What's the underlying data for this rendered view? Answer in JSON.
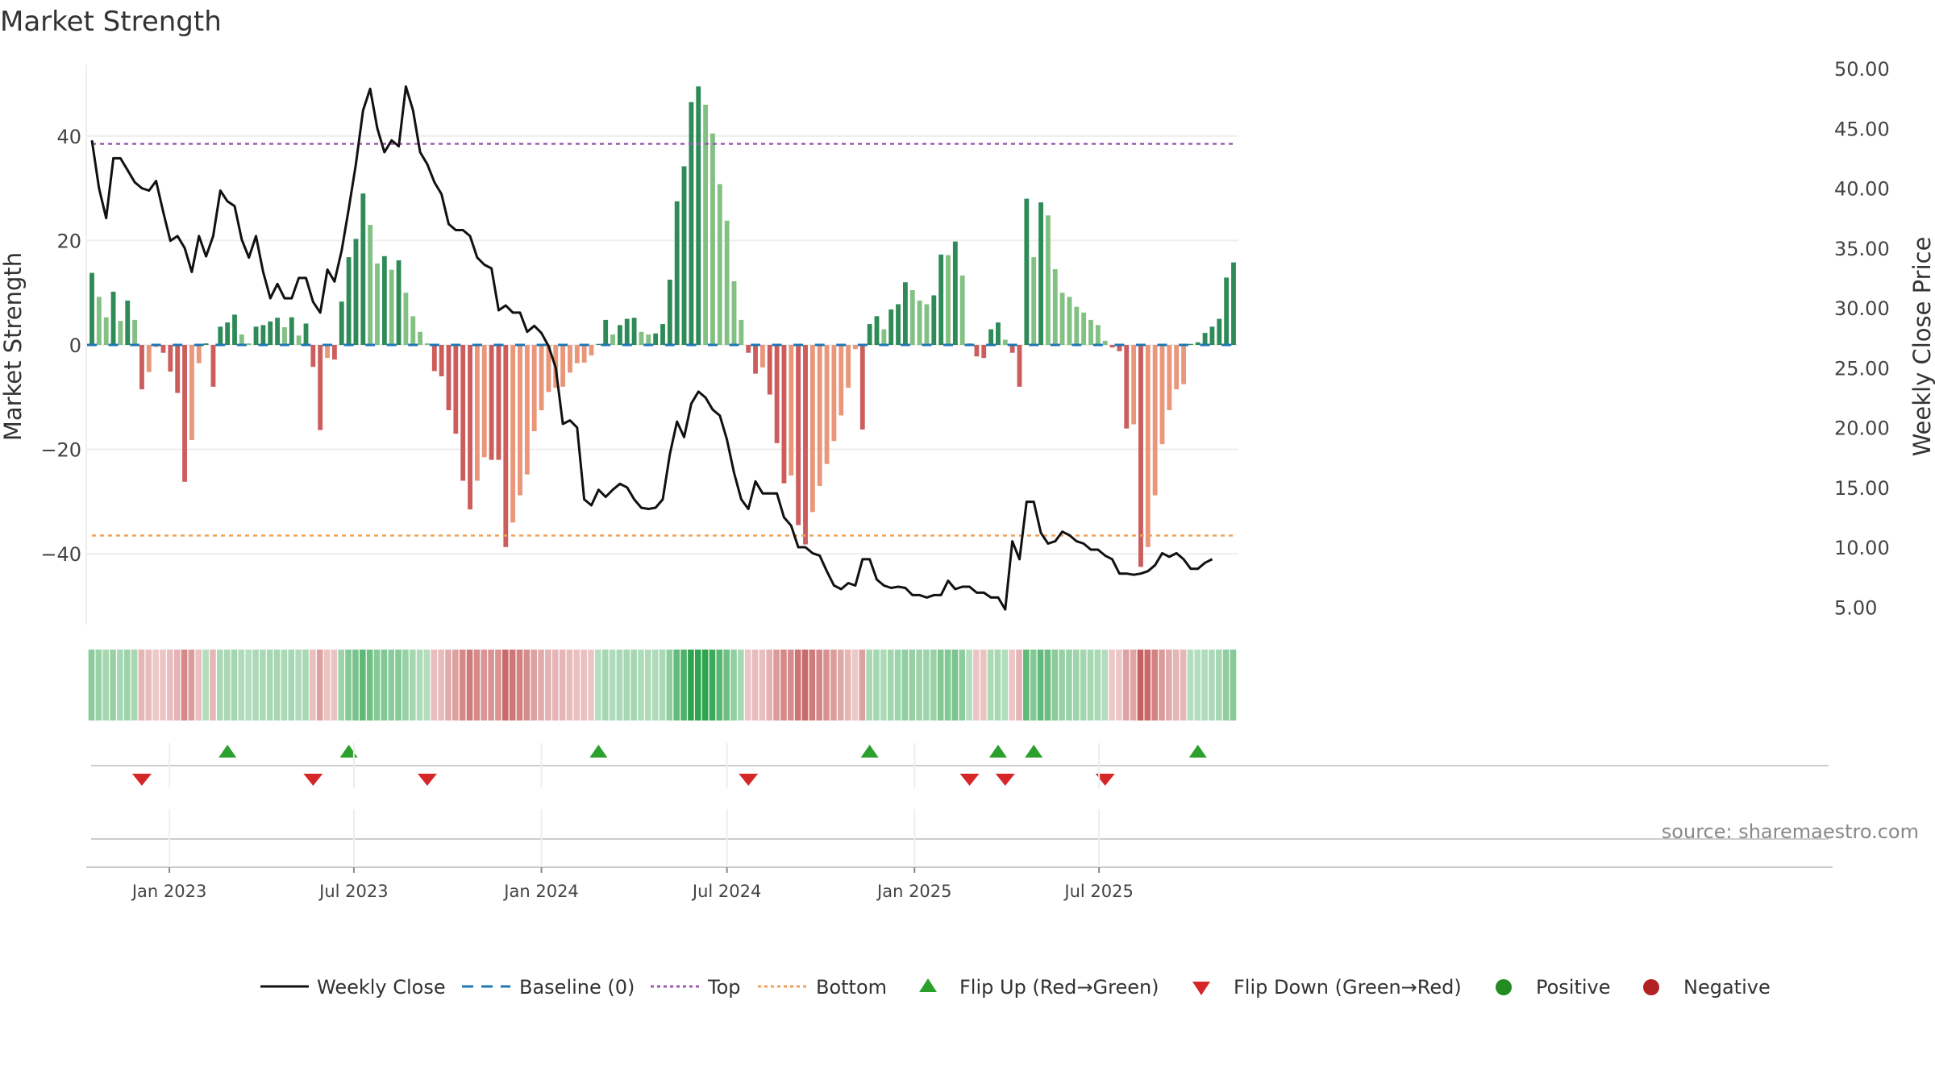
{
  "title": "Market Strength",
  "source_text": "source: sharemaestro.com",
  "y_left_label": "Market Strength",
  "y_right_label": "Weekly Close Price",
  "y_left_ticks": [
    "40",
    "20",
    "0",
    "−20",
    "−40"
  ],
  "y_right_ticks": [
    "50.00",
    "45.00",
    "40.00",
    "35.00",
    "30.00",
    "25.00",
    "20.00",
    "15.00",
    "10.00",
    "5.00"
  ],
  "x_tick_labels": [
    "Jan 2023",
    "Jul 2023",
    "Jan 2024",
    "Jul 2024",
    "Jan 2025",
    "Jul 2025"
  ],
  "legend": {
    "weekly_close": "Weekly Close",
    "baseline": "Baseline (0)",
    "top": "Top",
    "bottom": "Bottom",
    "flip_up": "Flip Up (Red→Green)",
    "flip_down": "Flip Down (Green→Red)",
    "positive": "Positive",
    "negative": "Negative"
  },
  "colors": {
    "pos_dark": "#2e8b57",
    "pos_light": "#82c083",
    "neg_dark": "#cd5c5c",
    "neg_light": "#e9967a",
    "line": "#111111",
    "top": "#9b59b6",
    "bottom": "#f0a05a",
    "baseline": "#1f77b4",
    "flip_up": "#2ca02c",
    "flip_down": "#d62728",
    "positive_dot": "#228b22",
    "negative_dot": "#b22222"
  },
  "chart_data": {
    "type": "bar+line",
    "weeks_start": "2022-10-17",
    "interval_days": 7,
    "strength": [
      13.8,
      9.2,
      5.3,
      10.2,
      4.6,
      8.5,
      4.8,
      -8.5,
      -5.2,
      -0.4,
      -1.5,
      -5.1,
      -9.2,
      -26.2,
      -18.2,
      -3.5,
      0.3,
      -8.0,
      3.5,
      4.3,
      5.8,
      2.0,
      0.3,
      3.5,
      3.8,
      4.5,
      5.2,
      3.4,
      5.3,
      1.8,
      4.1,
      -4.2,
      -16.3,
      -2.5,
      -2.8,
      8.3,
      16.8,
      20.3,
      29.0,
      23.0,
      15.6,
      17.0,
      14.4,
      16.2,
      10.0,
      5.5,
      2.5,
      0.3,
      -5.0,
      -6.0,
      -12.5,
      -17.0,
      -26.0,
      -31.5,
      -26.0,
      -21.5,
      -22.0,
      -22.0,
      -38.7,
      -34.0,
      -28.8,
      -24.8,
      -16.5,
      -12.5,
      -9.0,
      -8.2,
      -8.0,
      -5.3,
      -3.5,
      -3.4,
      -2.0,
      0.2,
      4.8,
      2.0,
      3.8,
      5.0,
      5.2,
      2.5,
      2.0,
      2.2,
      4.0,
      12.5,
      27.5,
      34.2,
      46.5,
      49.5,
      46.0,
      40.5,
      30.8,
      23.8,
      12.2,
      4.8,
      -1.5,
      -5.5,
      -4.3,
      -9.5,
      -18.8,
      -26.5,
      -25.0,
      -34.5,
      -38.2,
      -32.0,
      -27.0,
      -22.8,
      -18.4,
      -13.5,
      -8.2,
      -0.8,
      -16.2,
      4.0,
      5.5,
      3.0,
      6.8,
      7.8,
      12.0,
      10.5,
      8.5,
      7.8,
      9.5,
      17.3,
      17.2,
      19.8,
      13.3,
      0.3,
      -2.2,
      -2.5,
      3.0,
      4.3,
      1.0,
      -1.5,
      -8.0,
      28.0,
      16.8,
      27.3,
      24.8,
      14.5,
      10.0,
      9.2,
      7.3,
      6.2,
      4.8,
      3.8,
      0.8,
      -0.5,
      -1.2,
      -16.0,
      -15.2,
      -42.5,
      -38.7,
      -28.8,
      -19.0,
      -12.5,
      -8.5,
      -7.5,
      0.2,
      0.5,
      2.3,
      3.5,
      5.0,
      12.9,
      15.8
    ],
    "close": [
      44.0,
      40.0,
      37.5,
      42.5,
      42.5,
      41.5,
      40.5,
      40.0,
      39.8,
      40.6,
      38.0,
      35.6,
      36.0,
      35.0,
      33.0,
      36.0,
      34.3,
      36.0,
      39.8,
      38.9,
      38.5,
      35.7,
      34.2,
      36.0,
      33.0,
      30.8,
      32.0,
      30.8,
      30.8,
      32.5,
      32.5,
      30.5,
      29.6,
      33.2,
      32.2,
      34.8,
      38.3,
      42.0,
      46.5,
      48.3,
      45.0,
      43.0,
      44.0,
      43.5,
      48.5,
      46.5,
      43.0,
      42.0,
      40.5,
      39.5,
      37.0,
      36.5,
      36.5,
      36.0,
      34.2,
      33.6,
      33.3,
      29.8,
      30.2,
      29.6,
      29.6,
      28.0,
      28.5,
      27.9,
      26.8,
      25.0,
      20.3,
      20.6,
      20.0,
      14.0,
      13.5,
      14.8,
      14.2,
      14.8,
      15.3,
      15.0,
      14.0,
      13.3,
      13.2,
      13.3,
      14.0,
      17.8,
      20.5,
      19.2,
      22.0,
      23.0,
      22.5,
      21.5,
      21.0,
      19.0,
      16.2,
      14.0,
      13.2,
      15.5,
      14.5,
      14.5,
      14.5,
      12.5,
      11.8,
      10.0,
      10.0,
      9.5,
      9.3,
      8.0,
      6.8,
      6.5,
      7.0,
      6.8,
      9.0,
      9.0,
      7.3,
      6.8,
      6.6,
      6.7,
      6.6,
      6.0,
      6.0,
      5.8,
      6.0,
      6.0,
      7.2,
      6.5,
      6.7,
      6.7,
      6.2,
      6.2,
      5.8,
      5.8,
      4.8,
      10.5,
      9.0,
      13.8,
      13.8,
      11.2,
      10.3,
      10.5,
      11.3,
      11.0,
      10.5,
      10.3,
      9.8,
      9.8,
      9.3,
      9.0,
      7.8,
      7.8,
      7.7,
      7.8,
      8.0,
      8.5,
      9.5,
      9.2,
      9.5,
      9.0,
      8.2,
      8.2,
      8.7,
      9.0
    ],
    "top_level": 38.5,
    "bottom_level": -36.5,
    "baseline": 0,
    "ylim_left": [
      -54,
      54
    ],
    "ylim_right": [
      3.5,
      51.0
    ],
    "flip_up_weeks": [
      19,
      36,
      71,
      109,
      127,
      132,
      155
    ],
    "flip_down_weeks": [
      7,
      31,
      47,
      92,
      123,
      128,
      142
    ]
  }
}
